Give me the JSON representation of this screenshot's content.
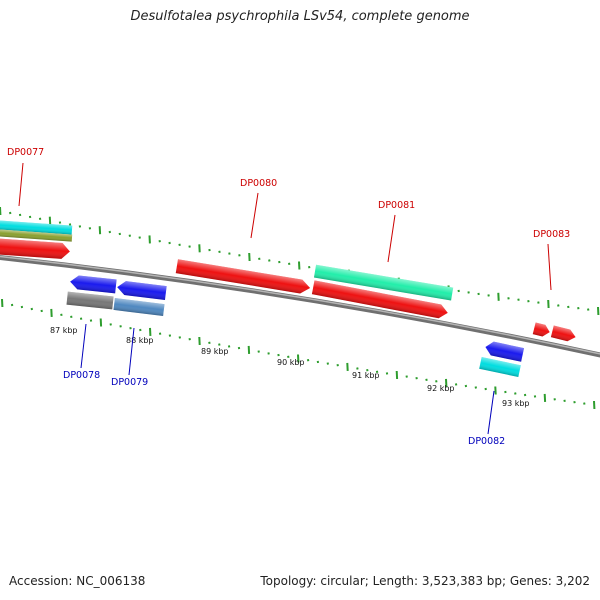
{
  "title": "Desulfotalea psychrophila LSv54, complete genome",
  "accession": "Accession: NC_006138",
  "summary": "Topology: circular; Length: 3,523,383 bp; Genes: 3,202",
  "colors": {
    "forward_label": "#cc0000",
    "reverse_label": "#0000bb",
    "backbone": "#8a8a8a",
    "tick": "#2e9d2e",
    "cds_red": "#ee1111",
    "cds_blue": "#1a1aee",
    "cds_cyan": "#00dde0",
    "cds_teal": "#22eeaa",
    "cds_olive": "#8aa030",
    "cds_gray": "#777777",
    "cds_steel": "#4f88c0"
  },
  "ticks": {
    "kbp_labels": [
      "87 kbp",
      "88 kbp",
      "89 kbp",
      "90 kbp",
      "91 kbp",
      "92 kbp",
      "93 kbp"
    ]
  },
  "genes": {
    "forward": [
      {
        "label": "DP0077"
      },
      {
        "label": "DP0080"
      },
      {
        "label": "DP0081"
      },
      {
        "label": "DP0083"
      }
    ],
    "reverse": [
      {
        "label": "DP0078"
      },
      {
        "label": "DP0079"
      },
      {
        "label": "DP0082"
      }
    ]
  }
}
